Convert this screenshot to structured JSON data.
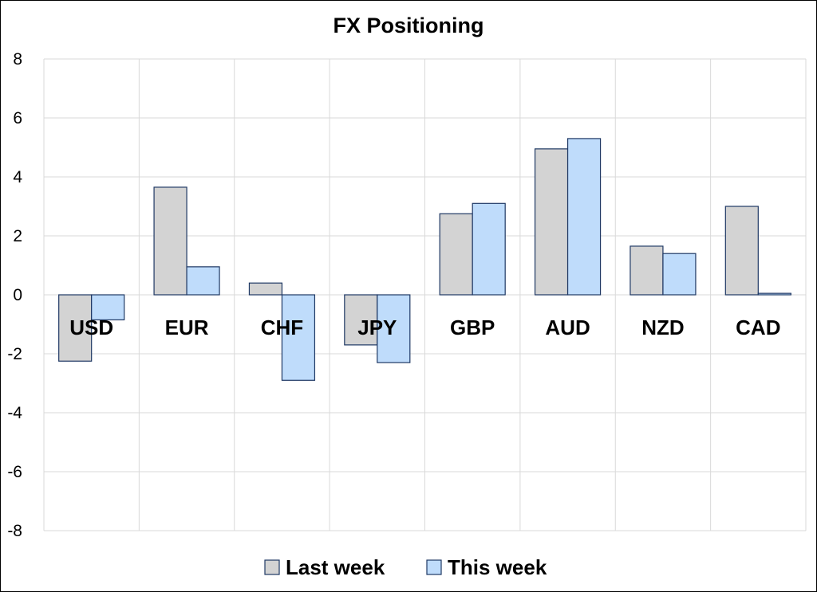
{
  "chart_data": {
    "type": "bar",
    "title": "FX Positioning",
    "categories": [
      "USD",
      "EUR",
      "CHF",
      "JPY",
      "GBP",
      "AUD",
      "NZD",
      "CAD"
    ],
    "series": [
      {
        "name": "Last week",
        "values": [
          -2.25,
          3.65,
          0.4,
          -1.7,
          2.75,
          4.95,
          1.65,
          3.0
        ],
        "color": "#d3d3d3"
      },
      {
        "name": "This week",
        "values": [
          -0.85,
          0.95,
          -2.9,
          -2.3,
          3.1,
          5.3,
          1.4,
          0.05
        ],
        "color": "#bfdcfb"
      }
    ],
    "bar_outline_color": "#1f3864",
    "ylim": [
      -8,
      8
    ],
    "yticks": [
      8,
      6,
      4,
      2,
      0,
      -2,
      -4,
      -6,
      -8
    ],
    "xlabel": "",
    "ylabel": "",
    "grid": true,
    "legend_position": "bottom"
  }
}
